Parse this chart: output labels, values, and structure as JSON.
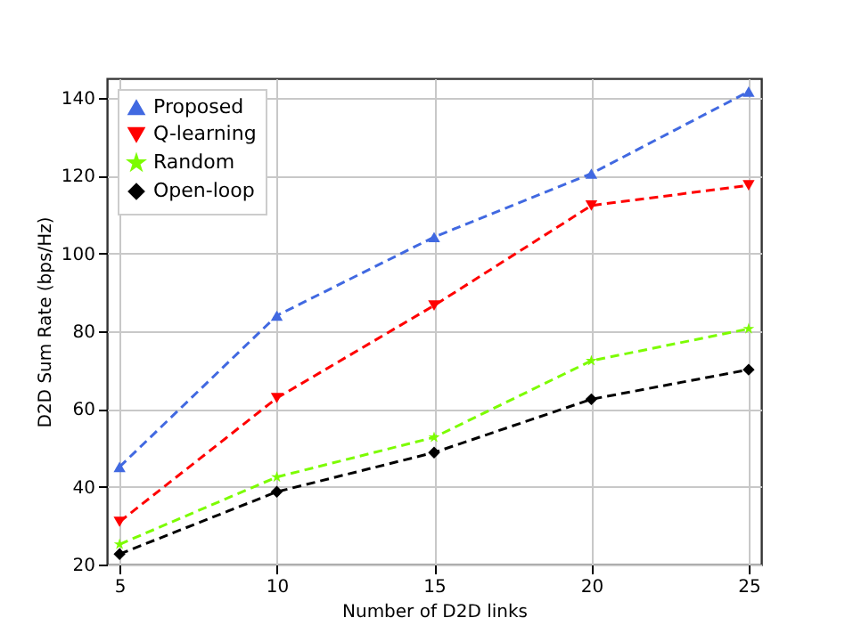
{
  "chart_data": {
    "type": "line",
    "xlabel": "Number of D2D links",
    "ylabel": "D2D Sum Rate (bps/Hz)",
    "x": [
      5,
      10,
      15,
      20,
      25
    ],
    "xlim": [
      4.6,
      25.4
    ],
    "xticks": [
      5,
      10,
      15,
      20,
      25
    ],
    "ylim": [
      20,
      145
    ],
    "yticks": [
      20,
      40,
      60,
      80,
      100,
      120,
      140
    ],
    "grid": true,
    "legend": "top left",
    "line_style": "dashed",
    "series": [
      {
        "name": "Proposed",
        "color": "#4169e1",
        "marker": "triangle",
        "values": [
          45.1,
          84,
          104.2,
          120.5,
          141.6
        ]
      },
      {
        "name": "Q-learning",
        "color": "#ff0000",
        "marker": "triangle-down",
        "values": [
          31,
          62.8,
          86.6,
          112.3,
          117.5
        ]
      },
      {
        "name": "Random",
        "color": "#7cfc00",
        "marker": "star",
        "values": [
          25.2,
          42.5,
          52.7,
          72.4,
          80.6
        ]
      },
      {
        "name": "Open-loop",
        "color": "#000000",
        "marker": "diamond",
        "values": [
          22.7,
          38.7,
          48.8,
          62.5,
          70.1
        ]
      }
    ]
  }
}
